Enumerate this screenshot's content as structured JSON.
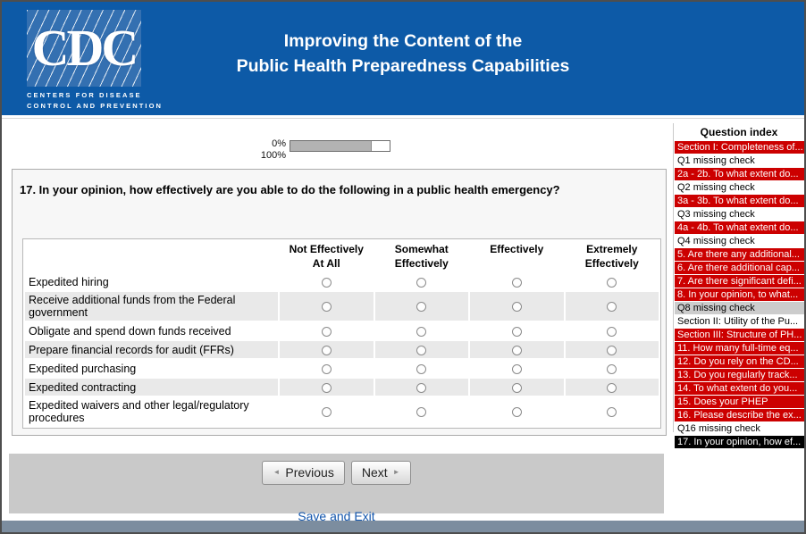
{
  "header": {
    "title_line1": "Improving the Content of the",
    "title_line2": "Public Health Preparedness Capabilities",
    "logo": {
      "acronym": "CDC",
      "line1": "CENTERS FOR DISEASE",
      "line2": "CONTROL AND PREVENTION"
    }
  },
  "progress": {
    "top_label": "0%",
    "bottom_label": "100%",
    "fill_percent": 82
  },
  "question": {
    "text": "17. In your opinion, how effectively are you able to do the following in a public health emergency?",
    "columns": [
      "Not Effectively At All",
      "Somewhat Effectively",
      "Effectively",
      "Extremely Effectively"
    ],
    "rows": [
      {
        "label": "Expedited hiring"
      },
      {
        "label": "Receive additional funds from the Federal government"
      },
      {
        "label": "Obligate and spend down funds received"
      },
      {
        "label": "Prepare financial records for audit (FFRs)"
      },
      {
        "label": "Expedited purchasing"
      },
      {
        "label": "Expedited contracting"
      },
      {
        "label": "Expedited waivers and other legal/regulatory procedures"
      }
    ]
  },
  "sidebar": {
    "title": "Question index",
    "items": [
      {
        "label": "Section I: Completeness of...",
        "state": "alert"
      },
      {
        "label": "Q1 missing check",
        "state": "normal"
      },
      {
        "label": "2a - 2b. To what extent do...",
        "state": "alert"
      },
      {
        "label": "Q2 missing check",
        "state": "normal"
      },
      {
        "label": "3a - 3b. To what extent do...",
        "state": "alert"
      },
      {
        "label": "Q3 missing check",
        "state": "normal"
      },
      {
        "label": "4a - 4b. To what extent do...",
        "state": "alert"
      },
      {
        "label": "Q4 missing check",
        "state": "normal"
      },
      {
        "label": "5. Are there any additional...",
        "state": "alert"
      },
      {
        "label": "6. Are there additional cap...",
        "state": "alert"
      },
      {
        "label": "7. Are there significant defi...",
        "state": "alert"
      },
      {
        "label": "8. In your opinion, to what...",
        "state": "alert"
      },
      {
        "label": "Q8 missing check",
        "state": "muted"
      },
      {
        "label": "Section II: Utility of the Pu...",
        "state": "normal"
      },
      {
        "label": "Section III: Structure of PH...",
        "state": "alert"
      },
      {
        "label": "11. How many full-time eq...",
        "state": "alert"
      },
      {
        "label": "12. Do you rely on the CD...",
        "state": "alert"
      },
      {
        "label": "13. Do you regularly track...",
        "state": "alert"
      },
      {
        "label": "14. To what extent do you...",
        "state": "alert"
      },
      {
        "label": "15. Does your PHEP",
        "state": "alert"
      },
      {
        "label": "16. Please describe the ex...",
        "state": "alert"
      },
      {
        "label": "Q16 missing check",
        "state": "normal"
      },
      {
        "label": "17. In your opinion, how ef...",
        "state": "current"
      }
    ]
  },
  "footer": {
    "previous_label": "Previous",
    "next_label": "Next",
    "prev_arrow": "◄",
    "next_arrow": "►",
    "save_exit_label": "Save and Exit"
  },
  "colors": {
    "header_blue": "#0d5aa7",
    "alert_red": "#cc0000",
    "current_black": "#000000",
    "muted_gray": "#cccccc",
    "footer_gray": "#c9c9c9",
    "bottom_bar": "#7c8d9f",
    "link_blue": "#1356ad",
    "table_stripe": "#e9e9e9"
  }
}
